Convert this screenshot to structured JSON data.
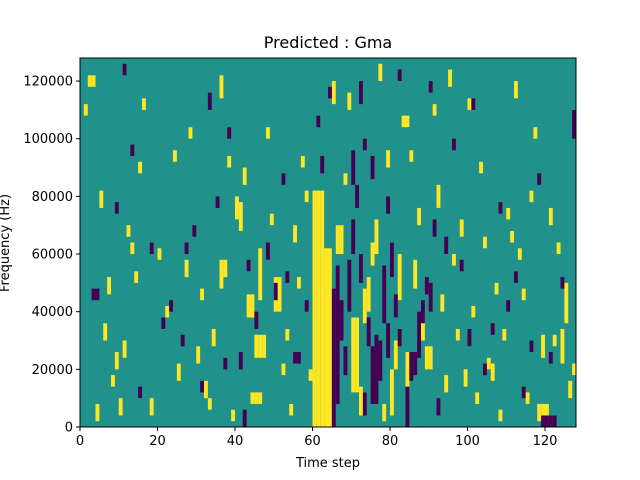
{
  "chart_data": {
    "type": "heatmap",
    "title": "Predicted : Gma",
    "xlabel": "Time step",
    "ylabel": "Frequency (Hz)",
    "xlim": [
      0,
      128
    ],
    "ylim": [
      0,
      128000
    ],
    "x_ticks": [
      "0",
      "20",
      "40",
      "60",
      "80",
      "100",
      "120"
    ],
    "x_tick_values": [
      0,
      20,
      40,
      60,
      80,
      100,
      120
    ],
    "y_ticks": [
      "0",
      "20000",
      "40000",
      "60000",
      "80000",
      "100000",
      "120000"
    ],
    "y_tick_values": [
      0,
      20000,
      40000,
      60000,
      80000,
      100000,
      120000
    ],
    "colormap": {
      "low": "#440154",
      "mid": "#21918c",
      "high": "#fde725"
    },
    "background_level": "mid",
    "grid": false,
    "high_runs": [
      [
        60,
        0,
        82000
      ],
      [
        61,
        0,
        82000
      ],
      [
        62,
        0,
        82000
      ],
      [
        63,
        0,
        62000
      ],
      [
        64,
        0,
        62000
      ],
      [
        70,
        12000,
        38000
      ],
      [
        71,
        12000,
        38000
      ],
      [
        72,
        4000,
        14000
      ],
      [
        73,
        36000,
        48000
      ],
      [
        74,
        40000,
        52000
      ],
      [
        75,
        56000,
        64000
      ],
      [
        80,
        4000,
        20000
      ],
      [
        81,
        20000,
        30000
      ],
      [
        82,
        44000,
        60000
      ],
      [
        84,
        10000,
        26000
      ],
      [
        86,
        48000,
        58000
      ],
      [
        44,
        8000,
        12000
      ],
      [
        45,
        8000,
        12000
      ],
      [
        46,
        8000,
        12000
      ],
      [
        45,
        24000,
        32000
      ],
      [
        46,
        24000,
        32000
      ],
      [
        47,
        24000,
        32000
      ],
      [
        46,
        44000,
        62000
      ],
      [
        50,
        40000,
        52000
      ],
      [
        51,
        40000,
        52000
      ],
      [
        43,
        38000,
        46000
      ],
      [
        44,
        38000,
        46000
      ],
      [
        36,
        48000,
        58000
      ],
      [
        37,
        52000,
        58000
      ],
      [
        40,
        72000,
        80000
      ],
      [
        41,
        68000,
        78000
      ],
      [
        66,
        60000,
        70000
      ],
      [
        67,
        60000,
        70000
      ],
      [
        76,
        60000,
        72000
      ],
      [
        89,
        20000,
        28000
      ],
      [
        90,
        20000,
        28000
      ],
      [
        2,
        118000,
        122000
      ],
      [
        3,
        118000,
        122000
      ],
      [
        18,
        4000,
        10000
      ],
      [
        36,
        114000,
        122000
      ],
      [
        83,
        104000,
        108000
      ],
      [
        84,
        104000,
        108000
      ],
      [
        58,
        78000,
        82000
      ],
      [
        55,
        64000,
        70000
      ],
      [
        98,
        66000,
        72000
      ],
      [
        110,
        72000,
        76000
      ],
      [
        111,
        64000,
        68000
      ],
      [
        121,
        70000,
        76000
      ],
      [
        119,
        24000,
        32000
      ],
      [
        124,
        22000,
        34000
      ],
      [
        125,
        36000,
        50000
      ],
      [
        126,
        10000,
        16000
      ],
      [
        118,
        2000,
        8000
      ],
      [
        119,
        2000,
        8000
      ],
      [
        120,
        2000,
        8000
      ],
      [
        10,
        4000,
        10000
      ],
      [
        11,
        24000,
        30000
      ],
      [
        13,
        60000,
        64000
      ],
      [
        25,
        16000,
        22000
      ],
      [
        27,
        52000,
        58000
      ],
      [
        30,
        22000,
        28000
      ],
      [
        32,
        10000,
        16000
      ],
      [
        34,
        28000,
        34000
      ],
      [
        38,
        90000,
        94000
      ],
      [
        42,
        84000,
        90000
      ],
      [
        48,
        100000,
        104000
      ],
      [
        56,
        48000,
        52000
      ],
      [
        65,
        112000,
        120000
      ],
      [
        69,
        110000,
        116000
      ],
      [
        77,
        120000,
        126000
      ],
      [
        79,
        90000,
        96000
      ],
      [
        88,
        30000,
        40000
      ],
      [
        92,
        76000,
        84000
      ],
      [
        94,
        12000,
        18000
      ],
      [
        96,
        56000,
        60000
      ],
      [
        99,
        14000,
        20000
      ],
      [
        101,
        38000,
        42000
      ],
      [
        103,
        88000,
        92000
      ],
      [
        105,
        20000,
        24000
      ],
      [
        107,
        46000,
        50000
      ],
      [
        112,
        114000,
        120000
      ],
      [
        115,
        8000,
        12000
      ],
      [
        117,
        100000,
        104000
      ],
      [
        122,
        28000,
        32000
      ],
      [
        5,
        76000,
        82000
      ],
      [
        7,
        46000,
        52000
      ],
      [
        9,
        20000,
        26000
      ],
      [
        15,
        88000,
        92000
      ],
      [
        20,
        58000,
        62000
      ],
      [
        22,
        38000,
        42000
      ],
      [
        28,
        100000,
        104000
      ],
      [
        53,
        30000,
        34000
      ],
      [
        57,
        90000,
        94000
      ],
      [
        68,
        84000,
        88000
      ],
      [
        87,
        70000,
        76000
      ],
      [
        91,
        108000,
        112000
      ],
      [
        95,
        118000,
        124000
      ],
      [
        109,
        30000,
        34000
      ],
      [
        113,
        58000,
        62000
      ],
      [
        102,
        8000,
        12000
      ],
      [
        93,
        40000,
        46000
      ],
      [
        97,
        30000,
        34000
      ],
      [
        106,
        16000,
        22000
      ],
      [
        12,
        66000,
        70000
      ],
      [
        16,
        110000,
        114000
      ],
      [
        24,
        92000,
        96000
      ],
      [
        31,
        44000,
        48000
      ],
      [
        33,
        6000,
        10000
      ],
      [
        39,
        2000,
        6000
      ],
      [
        49,
        70000,
        74000
      ],
      [
        52,
        18000,
        22000
      ],
      [
        54,
        4000,
        8000
      ],
      [
        59,
        16000,
        20000
      ],
      [
        78,
        2000,
        8000
      ],
      [
        85,
        92000,
        96000
      ],
      [
        100,
        110000,
        114000
      ],
      [
        104,
        62000,
        66000
      ],
      [
        108,
        2000,
        6000
      ],
      [
        114,
        44000,
        48000
      ],
      [
        116,
        78000,
        82000
      ],
      [
        123,
        60000,
        64000
      ],
      [
        127,
        18000,
        22000
      ],
      [
        1,
        108000,
        112000
      ],
      [
        4,
        2000,
        8000
      ],
      [
        6,
        30000,
        36000
      ],
      [
        8,
        14000,
        18000
      ],
      [
        14,
        50000,
        54000
      ]
    ],
    "low_runs": [
      [
        65,
        0,
        48000
      ],
      [
        66,
        8000,
        56000
      ],
      [
        67,
        30000,
        44000
      ],
      [
        68,
        18000,
        28000
      ],
      [
        69,
        40000,
        58000
      ],
      [
        70,
        60000,
        72000
      ],
      [
        71,
        76000,
        84000
      ],
      [
        72,
        50000,
        60000
      ],
      [
        73,
        4000,
        12000
      ],
      [
        74,
        28000,
        38000
      ],
      [
        75,
        8000,
        28000
      ],
      [
        76,
        8000,
        32000
      ],
      [
        77,
        16000,
        30000
      ],
      [
        78,
        36000,
        56000
      ],
      [
        79,
        24000,
        36000
      ],
      [
        80,
        52000,
        64000
      ],
      [
        81,
        38000,
        46000
      ],
      [
        82,
        28000,
        34000
      ],
      [
        84,
        0,
        14000
      ],
      [
        85,
        16000,
        26000
      ],
      [
        86,
        18000,
        26000
      ],
      [
        87,
        24000,
        40000
      ],
      [
        88,
        36000,
        44000
      ],
      [
        89,
        46000,
        52000
      ],
      [
        90,
        40000,
        50000
      ],
      [
        91,
        66000,
        72000
      ],
      [
        70,
        84000,
        96000
      ],
      [
        73,
        96000,
        100000
      ],
      [
        79,
        74000,
        80000
      ],
      [
        75,
        86000,
        94000
      ],
      [
        119,
        0,
        4000
      ],
      [
        120,
        0,
        4000
      ],
      [
        121,
        0,
        4000
      ],
      [
        122,
        0,
        4000
      ],
      [
        127,
        100000,
        110000
      ],
      [
        3,
        44000,
        48000
      ],
      [
        4,
        44000,
        48000
      ],
      [
        41,
        20000,
        26000
      ],
      [
        42,
        0,
        6000
      ],
      [
        45,
        34000,
        40000
      ],
      [
        50,
        44000,
        50000
      ],
      [
        55,
        22000,
        26000
      ],
      [
        56,
        22000,
        26000
      ],
      [
        48,
        58000,
        64000
      ],
      [
        26,
        28000,
        32000
      ],
      [
        27,
        60000,
        64000
      ],
      [
        13,
        94000,
        98000
      ],
      [
        11,
        122000,
        126000
      ],
      [
        33,
        110000,
        116000
      ],
      [
        38,
        100000,
        104000
      ],
      [
        62,
        88000,
        94000
      ],
      [
        64,
        114000,
        118000
      ],
      [
        72,
        112000,
        120000
      ],
      [
        82,
        120000,
        124000
      ],
      [
        90,
        116000,
        120000
      ],
      [
        94,
        60000,
        66000
      ],
      [
        100,
        28000,
        34000
      ],
      [
        104,
        18000,
        22000
      ],
      [
        106,
        32000,
        36000
      ],
      [
        112,
        50000,
        54000
      ],
      [
        114,
        10000,
        14000
      ],
      [
        116,
        26000,
        30000
      ],
      [
        118,
        84000,
        88000
      ],
      [
        121,
        22000,
        26000
      ],
      [
        124,
        48000,
        52000
      ],
      [
        96,
        96000,
        100000
      ],
      [
        101,
        110000,
        114000
      ],
      [
        108,
        74000,
        78000
      ],
      [
        18,
        60000,
        64000
      ],
      [
        23,
        40000,
        44000
      ],
      [
        29,
        66000,
        70000
      ],
      [
        31,
        12000,
        16000
      ],
      [
        35,
        76000,
        80000
      ],
      [
        43,
        54000,
        58000
      ],
      [
        52,
        84000,
        88000
      ],
      [
        58,
        40000,
        44000
      ],
      [
        61,
        104000,
        108000
      ],
      [
        9,
        74000,
        78000
      ],
      [
        15,
        10000,
        14000
      ],
      [
        21,
        34000,
        38000
      ],
      [
        37,
        20000,
        24000
      ],
      [
        53,
        50000,
        54000
      ],
      [
        92,
        4000,
        10000
      ],
      [
        98,
        54000,
        58000
      ],
      [
        110,
        40000,
        44000
      ]
    ]
  }
}
